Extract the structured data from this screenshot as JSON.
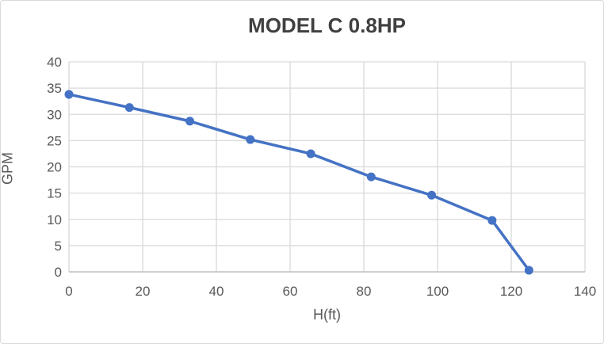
{
  "chart_data": {
    "type": "line",
    "title": "MODEL C 0.8HP",
    "xlabel": "H(ft)",
    "ylabel": "GPM",
    "xlim": [
      0,
      140
    ],
    "ylim": [
      0,
      40
    ],
    "xticks": [
      0,
      20,
      40,
      60,
      80,
      100,
      120,
      140
    ],
    "yticks": [
      0,
      5,
      10,
      15,
      20,
      25,
      30,
      35,
      40
    ],
    "grid": true,
    "legend": false,
    "series": [
      {
        "name": "MODEL C 0.8HP",
        "marker": "circle",
        "x": [
          0,
          16.4,
          32.8,
          49.2,
          65.6,
          82.0,
          98.4,
          114.8,
          124.8
        ],
        "y": [
          33.8,
          31.3,
          28.7,
          25.2,
          22.5,
          18.1,
          14.6,
          9.8,
          0.3
        ]
      }
    ],
    "colors": {
      "series": "#4472C4",
      "grid": "#D9D9D9",
      "axis": "#BFBFBF",
      "tick_text": "#595959",
      "title_text": "#404040"
    }
  }
}
